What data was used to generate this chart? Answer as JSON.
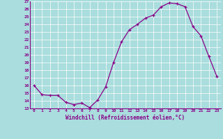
{
  "x": [
    0,
    1,
    2,
    3,
    4,
    5,
    6,
    7,
    8,
    9,
    10,
    11,
    12,
    13,
    14,
    15,
    16,
    17,
    18,
    19,
    20,
    21,
    22,
    23
  ],
  "y": [
    16.0,
    14.8,
    14.7,
    14.7,
    13.8,
    13.5,
    13.7,
    13.1,
    14.1,
    15.8,
    19.0,
    21.7,
    23.3,
    24.0,
    24.8,
    25.2,
    26.3,
    26.8,
    26.7,
    26.3,
    23.7,
    22.5,
    19.8,
    17.2
  ],
  "xlabel": "Windchill (Refroidissement éolien,°C)",
  "xlim": [
    -0.5,
    23.5
  ],
  "ylim": [
    13,
    27
  ],
  "yticks": [
    13,
    14,
    15,
    16,
    17,
    18,
    19,
    20,
    21,
    22,
    23,
    24,
    25,
    26,
    27
  ],
  "xticks": [
    0,
    1,
    2,
    3,
    4,
    5,
    6,
    7,
    8,
    9,
    10,
    11,
    12,
    13,
    14,
    15,
    16,
    17,
    18,
    19,
    20,
    21,
    22,
    23
  ],
  "line_color": "#880088",
  "bg_color": "#aadddd",
  "grid_color": "#ffffff",
  "tick_color": "#880088",
  "label_color": "#880088"
}
